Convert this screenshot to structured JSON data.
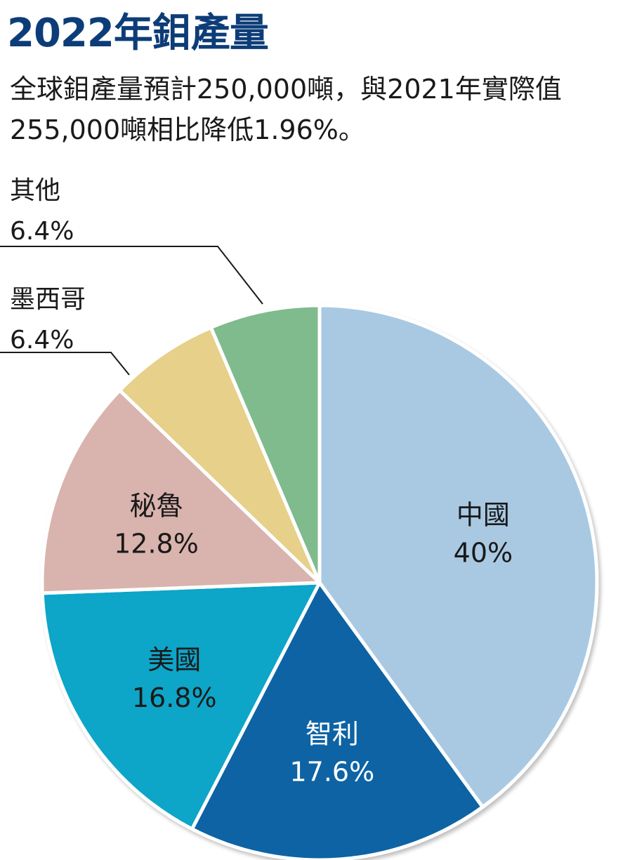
{
  "chart_data": {
    "type": "pie",
    "title": "2022年鉬產量",
    "subtitle": "全球鉬產量預計250,000噸，與2021年實際值255,000噸相比降低1.96%。",
    "slices": [
      {
        "name": "中國",
        "value": 40,
        "label": "40%",
        "color": "#a9c9e2",
        "label_color": "#1a1a1a"
      },
      {
        "name": "智利",
        "value": 17.6,
        "label": "17.6%",
        "color": "#0a64a4",
        "label_color": "#ffffff"
      },
      {
        "name": "美國",
        "value": 16.8,
        "label": "16.8%",
        "color": "#0aa5c8",
        "label_color": "#1a1a1a"
      },
      {
        "name": "秘魯",
        "value": 12.8,
        "label": "12.8%",
        "color": "#d9b3ad",
        "label_color": "#1a1a1a"
      },
      {
        "name": "墨西哥",
        "value": 6.4,
        "label": "6.4%",
        "color": "#e6d08a",
        "label_color": "#1a1a1a"
      },
      {
        "name": "其他",
        "value": 6.4,
        "label": "6.4%",
        "color": "#7fbb8d",
        "label_color": "#1a1a1a"
      }
    ],
    "start_angle_deg": 0,
    "direction": "clockwise",
    "legend": "none"
  }
}
